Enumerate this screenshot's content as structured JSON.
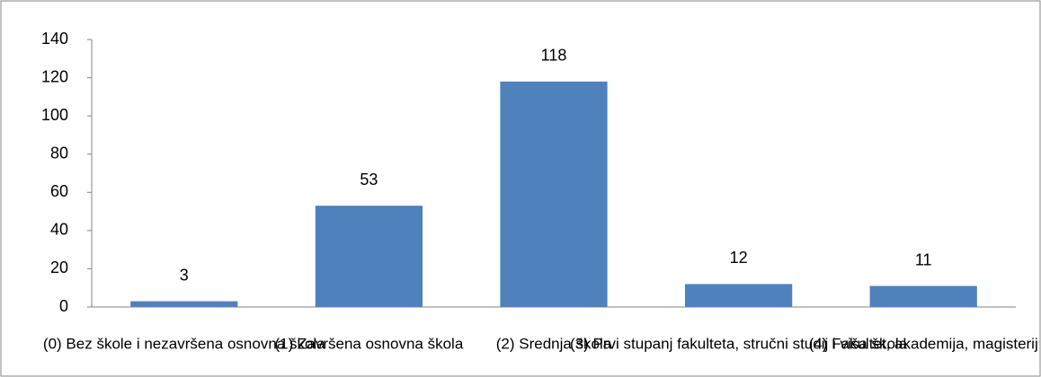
{
  "chart_data": {
    "type": "bar",
    "categories": [
      "(0) Bez škole i nezavršena osnovna škola",
      "(1) Završena osnovna škola",
      "(2) Srednja škola",
      "(3) Prvi stupanj fakulteta, stručni studij i viša škola",
      "(4) Fakultet, akademija, magisterij"
    ],
    "values": [
      3,
      53,
      118,
      12,
      11
    ],
    "color": "#4f81bd",
    "ylim": [
      0,
      140
    ],
    "yticks": [
      0,
      20,
      40,
      60,
      80,
      100,
      120,
      140
    ],
    "grid": false
  }
}
